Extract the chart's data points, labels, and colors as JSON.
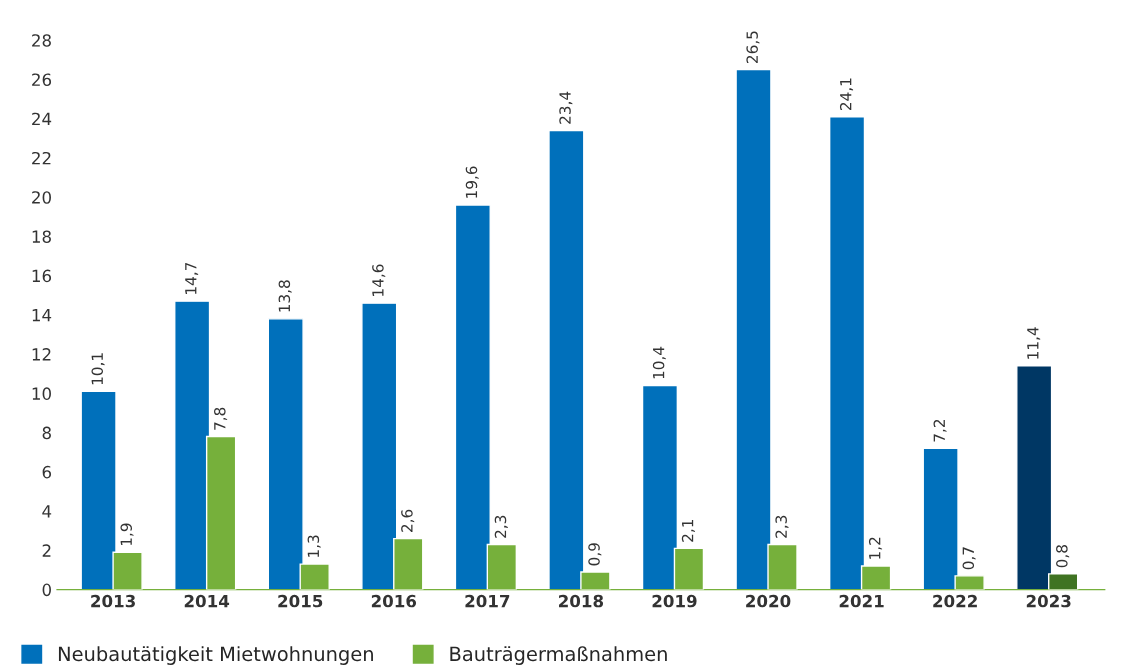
{
  "chart_data": {
    "type": "bar",
    "categories": [
      "2013",
      "2014",
      "2015",
      "2016",
      "2017",
      "2018",
      "2019",
      "2020",
      "2021",
      "2022",
      "2023"
    ],
    "series": [
      {
        "name": "Neubautätigkeit Mietwohnungen",
        "color": "#0070bb",
        "colors": [
          "#0070bb",
          "#0070bb",
          "#0070bb",
          "#0070bb",
          "#0070bb",
          "#0070bb",
          "#0070bb",
          "#0070bb",
          "#0070bb",
          "#0070bb",
          "#003764"
        ],
        "values": [
          10.1,
          14.7,
          13.8,
          14.6,
          19.6,
          23.4,
          10.4,
          26.5,
          24.1,
          7.2,
          11.4
        ],
        "value_labels": [
          "10,1",
          "14,7",
          "13,8",
          "14,6",
          "19,6",
          "23,4",
          "10,4",
          "26,5",
          "24,1",
          "7,2",
          "11,4"
        ]
      },
      {
        "name": "Bauträgermaßnahmen",
        "color": "#76b03b",
        "colors": [
          "#76b03b",
          "#76b03b",
          "#76b03b",
          "#76b03b",
          "#76b03b",
          "#76b03b",
          "#76b03b",
          "#76b03b",
          "#76b03b",
          "#76b03b",
          "#3f7322"
        ],
        "values": [
          1.9,
          7.8,
          1.3,
          2.6,
          2.3,
          0.9,
          2.1,
          2.3,
          1.2,
          0.7,
          0.8
        ],
        "value_labels": [
          "1,9",
          "7,8",
          "1,3",
          "2,6",
          "2,3",
          "0,9",
          "2,1",
          "2,3",
          "1,2",
          "0,7",
          "0,8"
        ]
      }
    ],
    "ylim": [
      0,
      28
    ],
    "yticks": [
      0,
      2,
      4,
      6,
      8,
      10,
      12,
      14,
      16,
      18,
      20,
      22,
      24,
      26,
      28
    ],
    "grid": false,
    "legend": "bottom left"
  }
}
